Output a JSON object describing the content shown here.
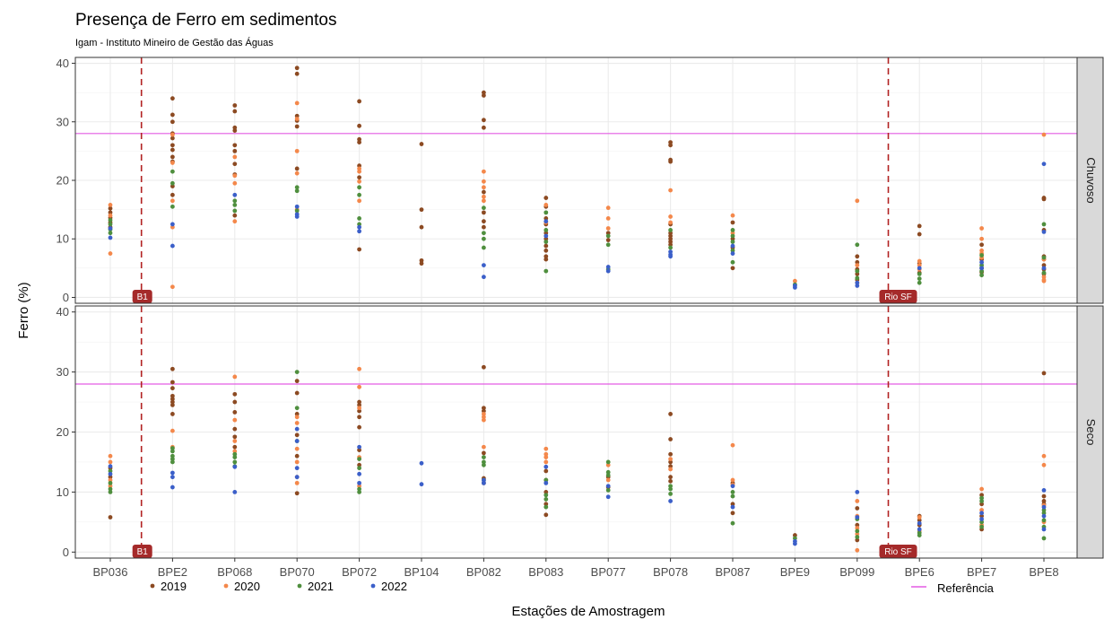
{
  "chart_data": {
    "type": "scatter",
    "title": "Presença de Ferro em sedimentos",
    "subtitle": "Igam - Instituto Mineiro de Gestão das Águas",
    "xlabel": "Estações de Amostragem",
    "ylabel": "Ferro (%)",
    "ylim": [
      -1,
      41
    ],
    "yticks": [
      0,
      10,
      20,
      30,
      40
    ],
    "grid": true,
    "categories": [
      "BP036",
      "BPE2",
      "BP068",
      "BP070",
      "BP072",
      "BP104",
      "BP082",
      "BP083",
      "BP077",
      "BP078",
      "BP087",
      "BPE9",
      "BP099",
      "BPE6",
      "BPE7",
      "BPE8"
    ],
    "reference": {
      "name": "Referência",
      "value": 28,
      "color": "#e35ce3"
    },
    "vlines": [
      {
        "label": "B1",
        "after_category": "BP036"
      },
      {
        "label": "Rio SF",
        "after_category": "BP099"
      }
    ],
    "legend": {
      "position": "bottom"
    },
    "series_colors": {
      "2019": "#8c4a22",
      "2020": "#f4884b",
      "2021": "#4f8f3e",
      "2022": "#3b5fc9"
    },
    "series_names": [
      "2019",
      "2020",
      "2021",
      "2022"
    ],
    "panels": [
      {
        "name": "Chuvoso",
        "points": {
          "BP036": {
            "2019": [
              15.2,
              14.5,
              13.6,
              12.8,
              12.0
            ],
            "2020": [
              15.8,
              14.0,
              7.5
            ],
            "2021": [
              13.2,
              12.5,
              11.6,
              11.0
            ],
            "2022": [
              11.8,
              10.2
            ]
          },
          "BPE2": {
            "2019": [
              34.0,
              31.2,
              30.0,
              28.0,
              27.2,
              26.0,
              25.2,
              24.0,
              23.2,
              19.0,
              17.5
            ],
            "2020": [
              27.8,
              23.0,
              16.5,
              12.0,
              1.8
            ],
            "2021": [
              21.5,
              19.5,
              15.5
            ],
            "2022": [
              12.5,
              8.8
            ]
          },
          "BP068": {
            "2019": [
              32.8,
              31.8,
              29.0,
              28.5,
              26.0,
              25.0,
              22.8,
              21.0,
              14.0
            ],
            "2020": [
              24.0,
              20.8,
              19.5,
              13.0
            ],
            "2021": [
              16.5,
              15.8,
              14.8
            ],
            "2022": [
              17.5
            ]
          },
          "BP070": {
            "2019": [
              39.2,
              38.2,
              31.0,
              30.2,
              29.2,
              22.0
            ],
            "2020": [
              33.2,
              30.5,
              25.0,
              21.2,
              15.0
            ],
            "2021": [
              18.8,
              18.2,
              14.8
            ],
            "2022": [
              15.5,
              14.2,
              13.8
            ]
          },
          "BP072": {
            "2019": [
              33.5,
              29.3,
              27.0,
              26.5,
              22.5,
              20.5,
              8.2
            ],
            "2020": [
              22.0,
              21.5,
              19.8,
              16.5
            ],
            "2021": [
              18.8,
              17.5,
              13.5,
              12.5
            ],
            "2022": [
              12.0,
              11.3
            ]
          },
          "BP104": {
            "2019": [
              26.2,
              15.0,
              12.0,
              6.3,
              5.8
            ]
          },
          "BP082": {
            "2019": [
              35.0,
              34.5,
              30.3,
              29.0,
              18.0,
              14.5,
              13.0,
              12.0
            ],
            "2020": [
              21.5,
              19.8,
              18.8,
              17.2,
              16.5
            ],
            "2021": [
              15.3,
              11.0,
              10.0,
              8.5
            ],
            "2022": [
              5.5,
              3.5
            ]
          },
          "BP083": {
            "2019": [
              17.0,
              15.5,
              13.5,
              12.5,
              11.0,
              10.0,
              8.8,
              8.0,
              7.0,
              6.5
            ],
            "2020": [
              15.8,
              12.8
            ],
            "2021": [
              14.5,
              11.5,
              9.5,
              4.5
            ],
            "2022": [
              13.0,
              10.5
            ]
          },
          "BP077": {
            "2019": [
              11.0,
              9.8
            ],
            "2020": [
              15.3,
              13.5,
              11.8
            ],
            "2021": [
              10.5,
              9.0,
              4.8
            ],
            "2022": [
              5.2,
              4.5
            ]
          },
          "BP078": {
            "2019": [
              26.5,
              26.0,
              23.5,
              23.2,
              12.5,
              11.0,
              10.5,
              10.0,
              9.5,
              9.0
            ],
            "2020": [
              18.3,
              13.8,
              12.8
            ],
            "2021": [
              11.5,
              8.5
            ],
            "2022": [
              7.8,
              7.3,
              7.0
            ]
          },
          "BP087": {
            "2019": [
              12.8,
              10.0,
              8.5,
              5.0
            ],
            "2020": [
              14.0,
              11.0
            ],
            "2021": [
              11.5,
              10.5,
              9.5,
              8.0,
              6.0
            ],
            "2022": [
              8.8,
              7.5
            ]
          },
          "BPE9": {
            "2020": [
              2.8
            ],
            "2021": [
              2.2
            ],
            "2022": [
              2.0,
              1.7
            ]
          },
          "BP099": {
            "2019": [
              7.0,
              6.0,
              4.8,
              4.0,
              3.0
            ],
            "2020": [
              16.5,
              5.5,
              2.5
            ],
            "2021": [
              9.0,
              4.5,
              3.3
            ],
            "2022": [
              2.5,
              2.0
            ]
          },
          "BPE6": {
            "2019": [
              12.2,
              10.8,
              5.8,
              4.2
            ],
            "2020": [
              6.2,
              5.5,
              4.8
            ],
            "2021": [
              4.0,
              3.2,
              2.5
            ],
            "2022": [
              5.0
            ]
          },
          "BPE7": {
            "2019": [
              9.0,
              6.5,
              5.0,
              4.3
            ],
            "2020": [
              11.8,
              10.0,
              8.0,
              7.5,
              6.8
            ],
            "2021": [
              7.2,
              5.5,
              4.5,
              3.8
            ],
            "2022": [
              6.0,
              5.0
            ]
          },
          "BPE8": {
            "2019": [
              17.0,
              16.8,
              11.5,
              7.0,
              6.5,
              5.5,
              4.8,
              4.0
            ],
            "2020": [
              27.8,
              6.5,
              3.5,
              3.0,
              2.8
            ],
            "2021": [
              12.5,
              6.8,
              4.2
            ],
            "2022": [
              22.8,
              11.2,
              5.0
            ]
          }
        }
      },
      {
        "name": "Seco",
        "points": {
          "BP036": {
            "2019": [
              14.0,
              12.5,
              5.8
            ],
            "2020": [
              16.0,
              15.0,
              12.0,
              11.0
            ],
            "2021": [
              13.5,
              11.5,
              10.5,
              10.0
            ],
            "2022": [
              14.3,
              13.0
            ]
          },
          "BPE2": {
            "2019": [
              30.5,
              28.3,
              27.3,
              26.0,
              25.5,
              25.0,
              24.5,
              23.0
            ],
            "2020": [
              20.2,
              17.5
            ],
            "2021": [
              17.3,
              16.8,
              16.0,
              15.5,
              15.0
            ],
            "2022": [
              13.2,
              12.5,
              10.8
            ]
          },
          "BP068": {
            "2019": [
              26.3,
              25.0,
              23.3,
              20.5,
              19.2,
              17.5
            ],
            "2020": [
              29.2,
              22.0,
              18.5,
              16.8
            ],
            "2021": [
              16.3,
              15.8,
              15.0,
              14.3
            ],
            "2022": [
              14.2,
              10.0
            ]
          },
          "BP070": {
            "2019": [
              28.5,
              26.5,
              23.0,
              19.5,
              16.0,
              9.8
            ],
            "2020": [
              22.5,
              21.5,
              17.2,
              15.0,
              12.5,
              11.5
            ],
            "2021": [
              30.0,
              24.0,
              18.5
            ],
            "2022": [
              20.5,
              18.5,
              14.0,
              12.5
            ]
          },
          "BP072": {
            "2019": [
              25.0,
              24.5,
              23.5,
              22.5,
              20.8,
              17.0,
              14.5
            ],
            "2020": [
              30.5,
              27.5,
              24.0,
              15.8,
              11.0
            ],
            "2021": [
              15.5,
              14.0,
              10.5,
              10.0
            ],
            "2022": [
              17.5,
              13.0,
              11.5
            ]
          },
          "BP104": {
            "2022": [
              14.8,
              11.3
            ]
          },
          "BP082": {
            "2019": [
              30.8,
              24.0,
              23.5,
              16.5,
              12.3,
              11.5
            ],
            "2020": [
              23.0,
              22.5,
              22.0,
              17.5
            ],
            "2021": [
              15.8,
              15.0,
              14.5,
              12.0
            ],
            "2022": [
              12.0,
              11.5
            ]
          },
          "BP083": {
            "2019": [
              13.5,
              12.0,
              10.0,
              8.0,
              6.2
            ],
            "2020": [
              17.2,
              16.3,
              15.8,
              15.0
            ],
            "2021": [
              12.0,
              9.5,
              8.8,
              7.5
            ],
            "2022": [
              14.2,
              11.5
            ]
          },
          "BP077": {
            "2019": [
              12.5,
              10.8
            ],
            "2020": [
              14.5,
              12.0
            ],
            "2021": [
              15.0,
              13.3,
              12.8,
              10.3
            ],
            "2022": [
              11.0,
              9.2
            ]
          },
          "BP078": {
            "2019": [
              23.0,
              18.8,
              16.3,
              15.0,
              14.3,
              12.5,
              11.8
            ],
            "2020": [
              15.5,
              13.8
            ],
            "2021": [
              11.0,
              10.5,
              9.7
            ],
            "2022": [
              8.5
            ]
          },
          "BP087": {
            "2019": [
              11.5,
              8.0,
              6.5
            ],
            "2020": [
              17.8,
              12.0,
              11.2
            ],
            "2021": [
              10.0,
              9.3,
              4.8
            ],
            "2022": [
              11.0,
              7.5
            ]
          },
          "BPE9": {
            "2019": [
              2.8
            ],
            "2021": [
              2.3
            ],
            "2022": [
              1.8,
              1.4
            ]
          },
          "BP099": {
            "2019": [
              7.3,
              4.5,
              2.0
            ],
            "2020": [
              8.5,
              6.0,
              4.0,
              3.0,
              0.3
            ],
            "2021": [
              5.5,
              3.5,
              2.5
            ],
            "2022": [
              10.0,
              5.8
            ]
          },
          "BPE6": {
            "2019": [
              6.0,
              5.3,
              4.5
            ],
            "2020": [
              5.8,
              3.5
            ],
            "2021": [
              3.2,
              2.8
            ],
            "2022": [
              4.8,
              3.8
            ]
          },
          "BPE7": {
            "2019": [
              9.5,
              8.0,
              6.0,
              3.8
            ],
            "2020": [
              10.5,
              7.0,
              4.5
            ],
            "2021": [
              9.0,
              8.5,
              5.0,
              4.2
            ],
            "2022": [
              6.5,
              5.5
            ]
          },
          "BPE8": {
            "2019": [
              29.8,
              9.3,
              8.5,
              8.0
            ],
            "2020": [
              16.0,
              14.5,
              7.8,
              5.0
            ],
            "2021": [
              7.0,
              6.5,
              5.3,
              4.2,
              2.3
            ],
            "2022": [
              10.3,
              7.5,
              6.0,
              3.8
            ]
          }
        }
      }
    ]
  }
}
